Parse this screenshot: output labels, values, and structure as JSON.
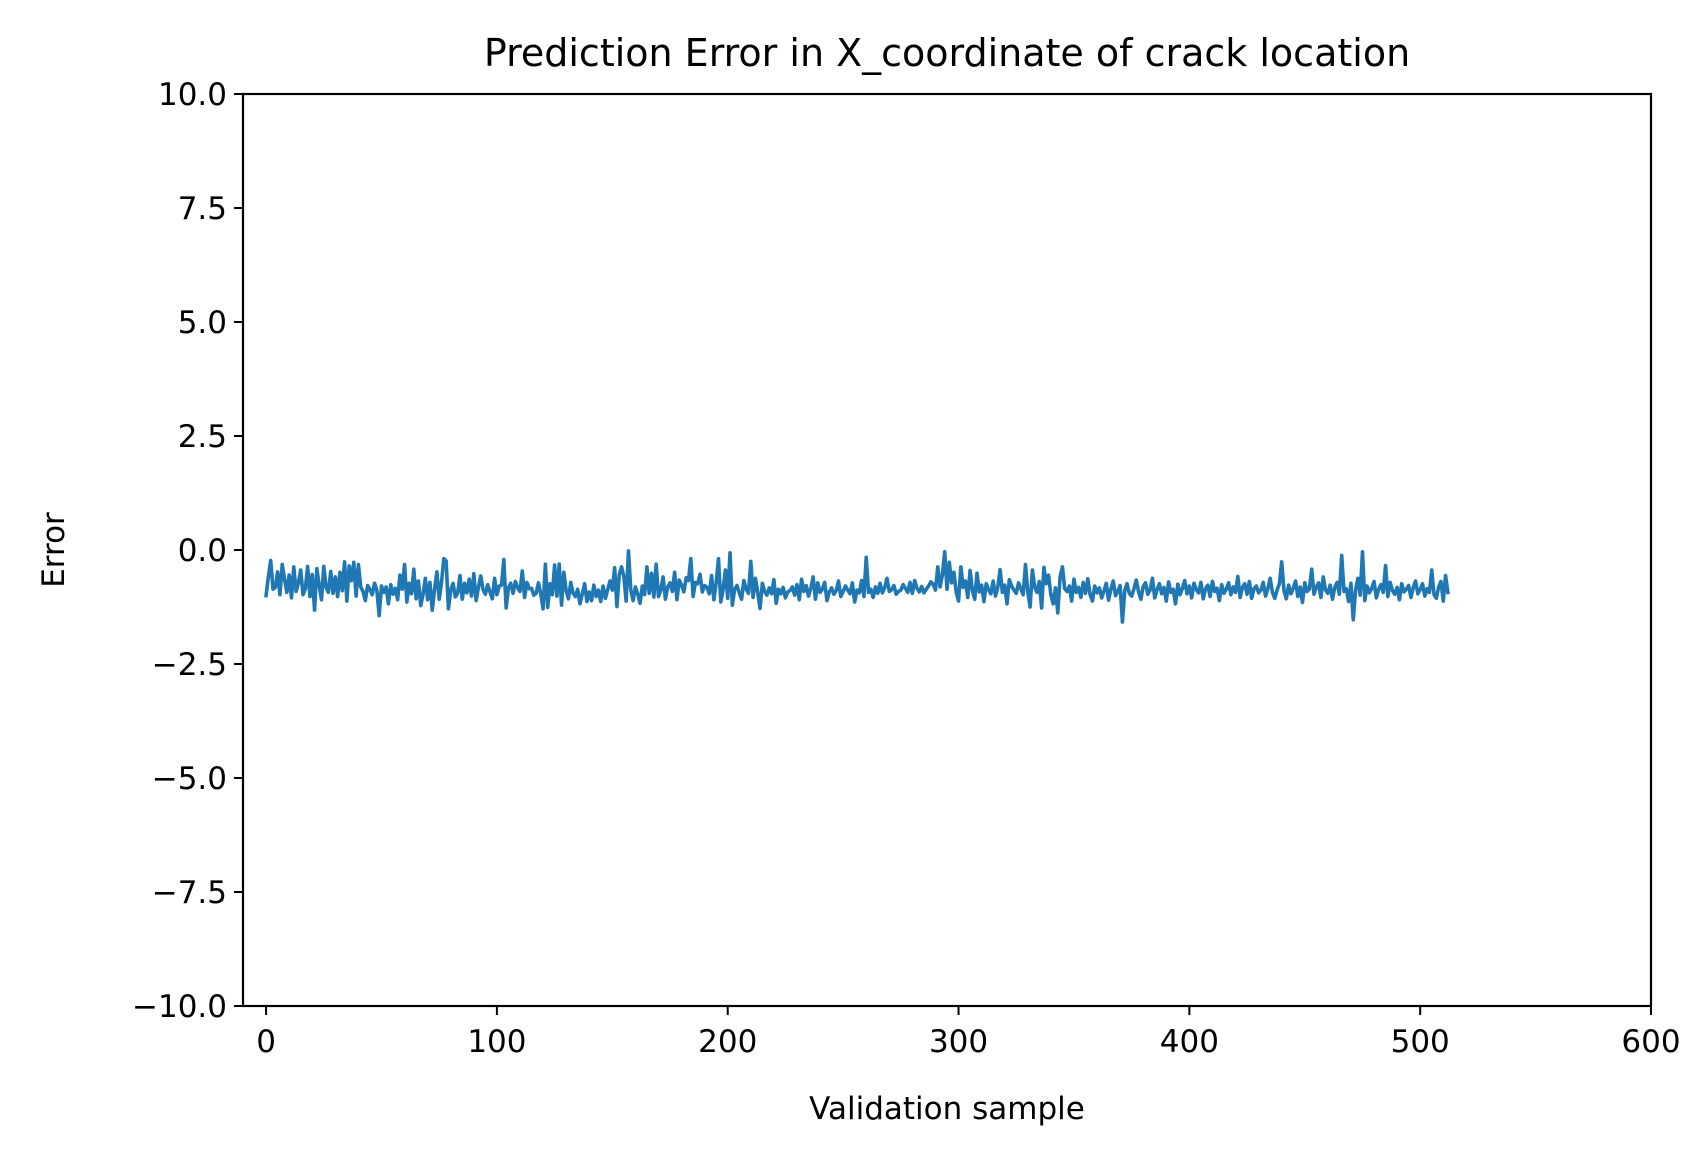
{
  "chart_data": {
    "type": "line",
    "title": "Prediction Error in X_coordinate of crack location",
    "xlabel": "Validation sample",
    "ylabel": "Error",
    "xlim": [
      -10,
      600
    ],
    "ylim": [
      -10,
      10
    ],
    "x_ticks": [
      0,
      100,
      200,
      300,
      400,
      500,
      600
    ],
    "y_ticks": [
      -10.0,
      -7.5,
      -5.0,
      -2.5,
      0.0,
      2.5,
      5.0,
      7.5,
      10.0
    ],
    "x_tick_labels": [
      "0",
      "100",
      "200",
      "300",
      "400",
      "500",
      "600"
    ],
    "y_tick_labels": [
      "−10.0",
      "−7.5",
      "−5.0",
      "−2.5",
      "0.0",
      "2.5",
      "5.0",
      "7.5",
      "10.0"
    ],
    "grid": false,
    "legend": "none",
    "series": [
      {
        "color": "#1f77b4",
        "x_start": 0,
        "x_step": 1,
        "values": [
          -1.0,
          -0.58,
          -0.23,
          -0.86,
          -0.82,
          -0.48,
          -0.98,
          -0.32,
          -0.64,
          -0.93,
          -0.55,
          -1.05,
          -0.37,
          -0.91,
          -0.72,
          -0.44,
          -0.98,
          -0.85,
          -0.36,
          -1.02,
          -0.54,
          -1.32,
          -0.41,
          -0.77,
          -1.09,
          -0.36,
          -0.82,
          -0.93,
          -0.47,
          -0.95,
          -0.59,
          -1.02,
          -0.49,
          -0.89,
          -0.26,
          -1.12,
          -0.35,
          -0.67,
          -0.27,
          -1.01,
          -0.32,
          -0.81,
          -0.91,
          -1.11,
          -0.78,
          -0.87,
          -0.98,
          -0.73,
          -0.89,
          -1.44,
          -0.79,
          -0.93,
          -0.81,
          -1.18,
          -0.76,
          -0.97,
          -0.84,
          -1.09,
          -0.55,
          -0.86,
          -0.32,
          -1.14,
          -0.73,
          -0.96,
          -0.42,
          -1.07,
          -0.68,
          -1.22,
          -0.97,
          -0.62,
          -1.09,
          -0.71,
          -1.32,
          -0.86,
          -0.48,
          -1.08,
          -0.71,
          -0.19,
          -0.24,
          -1.29,
          -0.88,
          -0.73,
          -1.03,
          -0.95,
          -0.56,
          -1.08,
          -0.73,
          -0.94,
          -0.64,
          -1.01,
          -0.52,
          -1.11,
          -0.82,
          -0.57,
          -0.87,
          -0.97,
          -0.76,
          -0.92,
          -1.07,
          -0.62,
          -0.98,
          -0.79,
          -0.77,
          -0.21,
          -1.27,
          -0.83,
          -0.73,
          -0.95,
          -0.69,
          -0.83,
          -0.91,
          -0.46,
          -1.04,
          -0.71,
          -0.85,
          -0.84,
          -0.99,
          -0.95,
          -0.72,
          -0.96,
          -1.29,
          -0.31,
          -1.26,
          -0.74,
          -0.98,
          -0.33,
          -1.01,
          -0.31,
          -1.21,
          -0.49,
          -0.89,
          -1.07,
          -0.71,
          -0.95,
          -1.02,
          -0.86,
          -1.18,
          -0.96,
          -0.74,
          -1.13,
          -0.92,
          -1.11,
          -0.77,
          -1.02,
          -0.88,
          -1.13,
          -0.79,
          -1.06,
          -0.87,
          -0.68,
          -0.88,
          -0.39,
          -1.24,
          -0.54,
          -0.37,
          -0.58,
          -1.12,
          -0.02,
          -0.87,
          -1.11,
          -0.81,
          -0.96,
          -1.17,
          -0.79,
          -0.98,
          -0.37,
          -0.95,
          -0.51,
          -1.03,
          -0.31,
          -1.02,
          -0.88,
          -0.59,
          -1.08,
          -0.81,
          -0.72,
          -0.91,
          -0.49,
          -1.09,
          -0.66,
          -0.77,
          -0.92,
          -0.61,
          -0.67,
          -0.19,
          -1.02,
          -0.71,
          -0.74,
          -0.53,
          -0.92,
          -0.78,
          -0.82,
          -0.96,
          -0.56,
          -1.09,
          -0.72,
          -0.19,
          -1.14,
          -0.87,
          -0.44,
          -1.06,
          -0.06,
          -1.21,
          -0.86,
          -0.78,
          -0.94,
          -1.08,
          -0.67,
          -0.86,
          -0.95,
          -0.25,
          -1.04,
          -0.62,
          -0.93,
          -1.28,
          -0.73,
          -0.91,
          -0.99,
          -0.83,
          -0.96,
          -0.65,
          -1.17,
          -0.86,
          -0.96,
          -0.82,
          -1.05,
          -0.92,
          -0.89,
          -0.81,
          -0.99,
          -0.76,
          -1.09,
          -0.64,
          -0.91,
          -0.78,
          -1.01,
          -0.84,
          -0.59,
          -1.08,
          -0.72,
          -0.93,
          -0.86,
          -0.71,
          -1.11,
          -0.92,
          -0.83,
          -0.97,
          -0.89,
          -0.68,
          -1.02,
          -0.91,
          -0.79,
          -0.88,
          -0.96,
          -0.72,
          -1.14,
          -0.88,
          -0.94,
          -0.67,
          -1.02,
          -0.16,
          -0.93,
          -0.86,
          -1.04,
          -0.81,
          -0.95,
          -0.73,
          -0.94,
          -0.83,
          -0.62,
          -0.91,
          -0.87,
          -0.78,
          -0.97,
          -0.91,
          -0.88,
          -0.76,
          -0.84,
          -0.93,
          -0.71,
          -0.95,
          -0.67,
          -0.84,
          -0.92,
          -0.8,
          -0.94,
          -0.86,
          -0.79,
          -0.7,
          -0.75,
          -0.88,
          -0.37,
          -0.81,
          -0.55,
          -0.04,
          -0.86,
          -0.27,
          -0.72,
          -0.49,
          -0.93,
          -1.12,
          -0.37,
          -0.82,
          -0.68,
          -1.04,
          -0.45,
          -0.89,
          -1.08,
          -0.51,
          -0.92,
          -0.77,
          -1.13,
          -0.74,
          -0.87,
          -0.96,
          -0.68,
          -1.01,
          -0.82,
          -0.43,
          -0.93,
          -0.77,
          -1.18,
          -0.65,
          -0.79,
          -0.88,
          -0.95,
          -0.72,
          -0.85,
          -0.98,
          -0.32,
          -0.92,
          -1.25,
          -0.44,
          -0.82,
          -0.93,
          -0.69,
          -1.27,
          -0.38,
          -0.74,
          -0.55,
          -0.98,
          -1.18,
          -0.83,
          -1.38,
          -0.59,
          -0.37,
          -0.85,
          -0.91,
          -0.79,
          -1.12,
          -0.64,
          -0.93,
          -0.82,
          -1.04,
          -0.71,
          -0.95,
          -0.63,
          -0.98,
          -1.12,
          -0.79,
          -0.94,
          -0.83,
          -1.05,
          -0.9,
          -0.73,
          -1.1,
          -0.86,
          -0.68,
          -1.0,
          -0.91,
          -0.78,
          -1.58,
          -0.89,
          -0.74,
          -0.95,
          -1.01,
          -0.85,
          -0.66,
          -0.92,
          -1.08,
          -0.8,
          -0.72,
          -0.97,
          -0.88,
          -0.62,
          -1.05,
          -0.87,
          -0.74,
          -0.96,
          -0.82,
          -1.12,
          -0.7,
          -0.93,
          -0.86,
          -1.18,
          -0.75,
          -0.98,
          -0.84,
          -0.67,
          -0.96,
          -0.79,
          -1.05,
          -0.73,
          -0.87,
          -0.94,
          -0.71,
          -1.07,
          -0.85,
          -0.77,
          -1.02,
          -0.69,
          -0.91,
          -0.84,
          -1.11,
          -0.76,
          -0.95,
          -0.86,
          -0.72,
          -0.98,
          -0.81,
          -0.93,
          -0.58,
          -1.04,
          -0.82,
          -0.74,
          -0.97,
          -0.69,
          -1.06,
          -0.85,
          -0.79,
          -0.94,
          -0.88,
          -0.71,
          -1.01,
          -0.85,
          -0.62,
          -0.93,
          -1.06,
          -0.88,
          -0.74,
          -0.26,
          -0.89,
          -1.07,
          -0.77,
          -0.96,
          -0.84,
          -0.68,
          -1.02,
          -0.81,
          -1.15,
          -0.72,
          -0.91,
          -0.86,
          -0.42,
          -0.97,
          -0.81,
          -0.72,
          -1.04,
          -0.59,
          -0.88,
          -0.95,
          -0.77,
          -1.08,
          -0.82,
          -0.71,
          -0.97,
          -0.12,
          -0.91,
          -0.85,
          -1.13,
          -0.73,
          -1.53,
          -0.88,
          -0.62,
          -0.99,
          -0.04,
          -1.11,
          -0.79,
          -0.94,
          -0.84,
          -0.69,
          -1.05,
          -0.86,
          -0.76,
          -0.93,
          -0.34,
          -1.02,
          -0.71,
          -0.89,
          -0.97,
          -0.82,
          -1.09,
          -0.74,
          -0.92,
          -0.86,
          -0.78,
          -1.04,
          -0.83,
          -0.68,
          -0.96,
          -0.87,
          -0.74,
          -1.01,
          -0.85,
          -0.93,
          -0.44,
          -0.98,
          -1.06,
          -0.81,
          -0.69,
          -1.12,
          -0.56,
          -0.93
        ]
      }
    ]
  }
}
